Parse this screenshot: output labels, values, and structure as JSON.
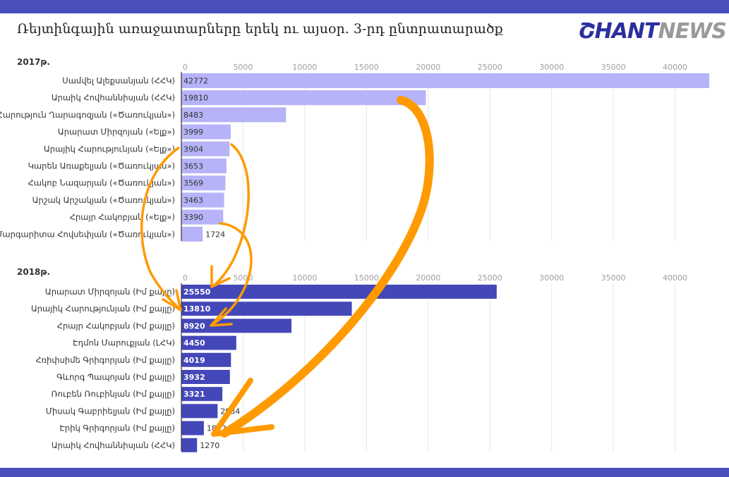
{
  "title": "Ռեյտինգային առաջատարները երեկ ու այսօր. 3-րդ ընտրատարածք",
  "logo": {
    "part1": "ՇHANT",
    "part2": "NEWS"
  },
  "colors": {
    "band": "#4a4fbb",
    "bar2017": "#b6b3f8",
    "bar2018": "#4447b8",
    "arrow": "#ff9a00",
    "grid": "#e6e6e6"
  },
  "chart_data": [
    {
      "type": "bar",
      "orientation": "horizontal",
      "title": "2017թ.",
      "xlim": [
        0,
        43000
      ],
      "ticks": [
        0,
        5000,
        10000,
        15000,
        20000,
        25000,
        30000,
        35000,
        40000
      ],
      "grid": true,
      "categories": [
        "Սամվել Ալեքսանյան (ՀՀԿ)",
        "Արաիկ Հովհաննիսյան (ՀՀԿ)",
        "Հարություն Ղարագոզյան («Ծառուկյան»)",
        "Արարատ Միրզոյան («Ելք»)",
        "Արայիկ Հարությունյան («Ելք»)",
        "Կարեն Առաքելյան («Ծառուկյան»)",
        "Հակոբ Նազարյան («Ծառուկյան»)",
        "Արշակ Արշակյան («Ծառուկյան»)",
        "Հրայր Հակոբյան («Ելք»)",
        "Մարգարիտա Հովսեփյան («Ծառուկյան»)"
      ],
      "values": [
        42772,
        19810,
        8483,
        3999,
        3904,
        3653,
        3569,
        3463,
        3390,
        1724
      ]
    },
    {
      "type": "bar",
      "orientation": "horizontal",
      "title": "2018թ.",
      "xlim": [
        0,
        43000
      ],
      "ticks": [
        0,
        5000,
        10000,
        15000,
        20000,
        25000,
        30000,
        35000,
        40000
      ],
      "grid": true,
      "categories": [
        "Արարատ Միրզոյան (Իմ քայլը)",
        "Արայիկ Հարությունյան (Իմ քայլը)",
        "Հրայր Հակոբյան (Իմ քայլը)",
        "Էդմոն Մարուքյան (ԼՀԿ)",
        "Հռիփսիմե Գրիգորյան (Իմ քայլը)",
        "Գևորգ Պապոյան (Իմ քայլը)",
        "Ռուբեն Ռուբինյան (Իմ քայլը)",
        "Միսակ Գաբրիելյան (Իմ քայլը)",
        "Էրիկ Գրիգորյան (Իմ քայլը)",
        "Արաիկ Հովհաննիսյան (ՀՀԿ)"
      ],
      "values": [
        25550,
        13810,
        8920,
        4450,
        4019,
        3932,
        3321,
        2934,
        1822,
        1270
      ]
    }
  ]
}
